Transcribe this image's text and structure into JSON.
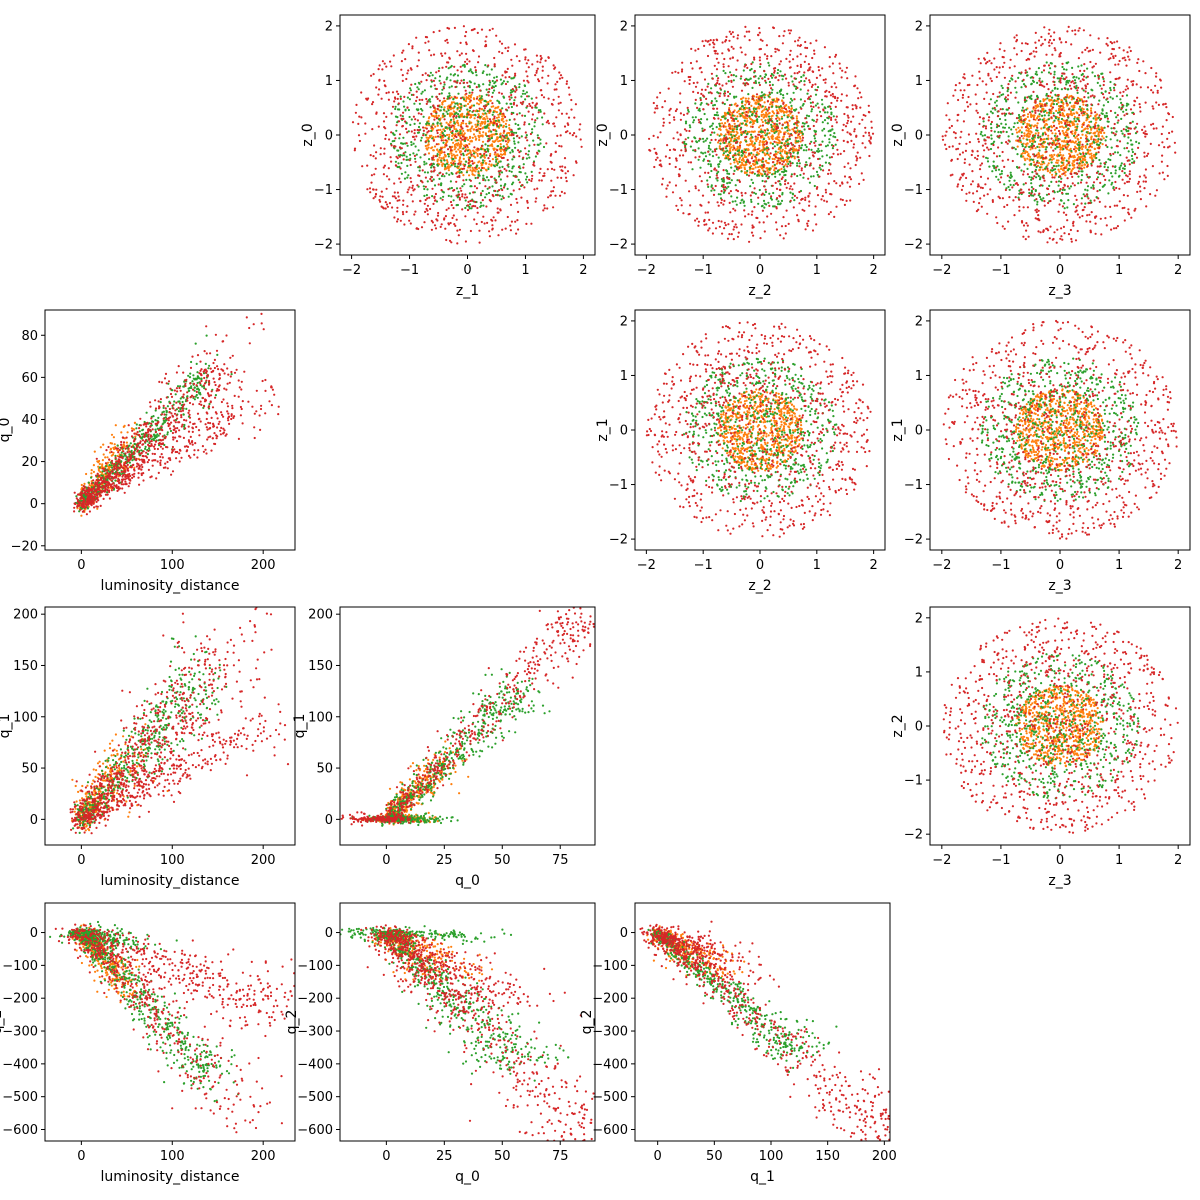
{
  "figure": {
    "background": "#ffffff",
    "series_colors": {
      "blue": "#1f77b4",
      "orange": "#ff7f0e",
      "green": "#2ca02c",
      "red": "#d62728"
    }
  },
  "chart_data": [
    {
      "type": "scatter",
      "xlabel": "z_1",
      "ylabel": "z_0",
      "xlim": [
        -2.2,
        2.2
      ],
      "ylim": [
        -2.2,
        2.2
      ],
      "xticks": [
        -2,
        -1,
        0,
        1,
        2
      ],
      "yticks": [
        -2,
        -1,
        0,
        1,
        2
      ],
      "series": [
        {
          "color": "#ff7f0e",
          "distribution": "disc",
          "center": [
            0,
            0
          ],
          "radius": 0.75,
          "n_points": 700
        },
        {
          "color": "#2ca02c",
          "distribution": "disc",
          "center": [
            0,
            0
          ],
          "radius": 1.35,
          "n_points": 650
        },
        {
          "color": "#d62728",
          "distribution": "disc",
          "center": [
            0,
            0
          ],
          "radius": 2.0,
          "n_points": 900
        }
      ]
    },
    {
      "type": "scatter",
      "xlabel": "z_2",
      "ylabel": "z_0",
      "xlim": [
        -2.2,
        2.2
      ],
      "ylim": [
        -2.2,
        2.2
      ],
      "xticks": [
        -2,
        -1,
        0,
        1,
        2
      ],
      "yticks": [
        -2,
        -1,
        0,
        1,
        2
      ],
      "series": [
        {
          "color": "#ff7f0e",
          "distribution": "disc",
          "center": [
            0,
            0
          ],
          "radius": 0.75,
          "n_points": 700
        },
        {
          "color": "#2ca02c",
          "distribution": "disc",
          "center": [
            0,
            0
          ],
          "radius": 1.35,
          "n_points": 650
        },
        {
          "color": "#d62728",
          "distribution": "disc",
          "center": [
            0,
            0
          ],
          "radius": 2.0,
          "n_points": 900
        }
      ]
    },
    {
      "type": "scatter",
      "xlabel": "z_3",
      "ylabel": "z_0",
      "xlim": [
        -2.2,
        2.2
      ],
      "ylim": [
        -2.2,
        2.2
      ],
      "xticks": [
        -2,
        -1,
        0,
        1,
        2
      ],
      "yticks": [
        -2,
        -1,
        0,
        1,
        2
      ],
      "series": [
        {
          "color": "#ff7f0e",
          "distribution": "disc",
          "center": [
            0,
            0
          ],
          "radius": 0.75,
          "n_points": 700
        },
        {
          "color": "#2ca02c",
          "distribution": "disc",
          "center": [
            0,
            0
          ],
          "radius": 1.35,
          "n_points": 650
        },
        {
          "color": "#d62728",
          "distribution": "disc",
          "center": [
            0,
            0
          ],
          "radius": 2.0,
          "n_points": 900
        }
      ]
    },
    {
      "type": "scatter",
      "xlabel": "luminosity_distance",
      "ylabel": "q_0",
      "xlim": [
        -40,
        235
      ],
      "ylim": [
        -22,
        92
      ],
      "xticks": [
        0,
        100,
        200
      ],
      "yticks": [
        -20,
        0,
        20,
        40,
        60,
        80
      ],
      "series": [
        {
          "color": "#ff7f0e",
          "distribution": "branches",
          "origin": [
            0,
            0
          ],
          "spread": 4,
          "branches": [
            [
              60,
              35,
              0.6,
              1
            ]
          ]
        },
        {
          "color": "#2ca02c",
          "distribution": "branches",
          "origin": [
            0,
            0
          ],
          "spread": 4,
          "branches": [
            [
              130,
              58,
              1,
              1
            ]
          ]
        },
        {
          "color": "#d62728",
          "distribution": "branches",
          "origin": [
            0,
            0
          ],
          "spread": 6,
          "branches": [
            [
              215,
              52,
              0.7,
              1
            ],
            [
              150,
              62,
              1,
              1
            ],
            [
              200,
              86,
              0.25,
              1
            ]
          ]
        }
      ]
    },
    {
      "type": "scatter",
      "xlabel": "z_2",
      "ylabel": "z_1",
      "xlim": [
        -2.2,
        2.2
      ],
      "ylim": [
        -2.2,
        2.2
      ],
      "xticks": [
        -2,
        -1,
        0,
        1,
        2
      ],
      "yticks": [
        -2,
        -1,
        0,
        1,
        2
      ],
      "series": [
        {
          "color": "#ff7f0e",
          "distribution": "disc",
          "center": [
            0,
            0
          ],
          "radius": 0.75,
          "n_points": 700
        },
        {
          "color": "#2ca02c",
          "distribution": "disc",
          "center": [
            0,
            0
          ],
          "radius": 1.35,
          "n_points": 650
        },
        {
          "color": "#d62728",
          "distribution": "disc",
          "center": [
            0,
            0
          ],
          "radius": 2.0,
          "n_points": 900
        }
      ]
    },
    {
      "type": "scatter",
      "xlabel": "z_3",
      "ylabel": "z_1",
      "xlim": [
        -2.2,
        2.2
      ],
      "ylim": [
        -2.2,
        2.2
      ],
      "xticks": [
        -2,
        -1,
        0,
        1,
        2
      ],
      "yticks": [
        -2,
        -1,
        0,
        1,
        2
      ],
      "series": [
        {
          "color": "#ff7f0e",
          "distribution": "disc",
          "center": [
            0,
            0
          ],
          "radius": 0.75,
          "n_points": 700
        },
        {
          "color": "#2ca02c",
          "distribution": "disc",
          "center": [
            0,
            0
          ],
          "radius": 1.35,
          "n_points": 650
        },
        {
          "color": "#d62728",
          "distribution": "disc",
          "center": [
            0,
            0
          ],
          "radius": 2.0,
          "n_points": 900
        }
      ]
    },
    {
      "type": "scatter",
      "xlabel": "luminosity_distance",
      "ylabel": "q_1",
      "xlim": [
        -40,
        235
      ],
      "ylim": [
        -25,
        207
      ],
      "xticks": [
        0,
        100,
        200
      ],
      "yticks": [
        0,
        50,
        100,
        150,
        200
      ],
      "series": [
        {
          "color": "#ff7f0e",
          "distribution": "branches",
          "origin": [
            0,
            0
          ],
          "spread": 7,
          "branches": [
            [
              60,
              70,
              0.6,
              1
            ]
          ]
        },
        {
          "color": "#2ca02c",
          "distribution": "branches",
          "origin": [
            0,
            0
          ],
          "spread": 7,
          "branches": [
            [
              130,
              130,
              1,
              1
            ]
          ]
        },
        {
          "color": "#d62728",
          "distribution": "branches",
          "origin": [
            0,
            0
          ],
          "spread": 10,
          "branches": [
            [
              215,
              95,
              0.7,
              1
            ],
            [
              150,
              150,
              1,
              1
            ],
            [
              200,
              195,
              0.25,
              1
            ]
          ]
        }
      ]
    },
    {
      "type": "scatter",
      "xlabel": "q_0",
      "ylabel": "q_1",
      "xlim": [
        -20,
        90
      ],
      "ylim": [
        -25,
        207
      ],
      "xticks": [
        0,
        25,
        50,
        75
      ],
      "yticks": [
        0,
        50,
        100,
        150,
        200
      ],
      "series": [
        {
          "color": "#ff7f0e",
          "distribution": "branches",
          "origin": [
            0,
            0
          ],
          "spread": 4,
          "branches": [
            [
              30,
              65,
              0.6,
              1
            ],
            [
              15,
              0,
              0.4,
              1
            ]
          ]
        },
        {
          "color": "#2ca02c",
          "distribution": "branches",
          "origin": [
            0,
            0
          ],
          "spread": 4,
          "branches": [
            [
              55,
              120,
              1,
              1
            ],
            [
              15,
              0,
              0.6,
              1
            ]
          ]
        },
        {
          "color": "#d62728",
          "distribution": "branches",
          "origin": [
            0,
            0
          ],
          "spread": 5,
          "branches": [
            [
              85,
              195,
              1,
              1
            ],
            [
              -10,
              0,
              0.3,
              1
            ]
          ]
        }
      ]
    },
    {
      "type": "scatter",
      "xlabel": "z_3",
      "ylabel": "z_2",
      "xlim": [
        -2.2,
        2.2
      ],
      "ylim": [
        -2.2,
        2.2
      ],
      "xticks": [
        -2,
        -1,
        0,
        1,
        2
      ],
      "yticks": [
        -2,
        -1,
        0,
        1,
        2
      ],
      "series": [
        {
          "color": "#ff7f0e",
          "distribution": "disc",
          "center": [
            0,
            0
          ],
          "radius": 0.75,
          "n_points": 700
        },
        {
          "color": "#2ca02c",
          "distribution": "disc",
          "center": [
            0,
            0
          ],
          "radius": 1.35,
          "n_points": 650
        },
        {
          "color": "#d62728",
          "distribution": "disc",
          "center": [
            0,
            0
          ],
          "radius": 2.0,
          "n_points": 900
        }
      ]
    },
    {
      "type": "scatter",
      "xlabel": "luminosity_distance",
      "ylabel": "q_2",
      "xlim": [
        -40,
        235
      ],
      "ylim": [
        -635,
        90
      ],
      "xticks": [
        0,
        100,
        200
      ],
      "yticks": [
        0,
        -100,
        -200,
        -300,
        -400,
        -500,
        -600
      ],
      "series": [
        {
          "color": "#ff7f0e",
          "distribution": "branches",
          "origin": [
            0,
            0
          ],
          "spread": 12,
          "branches": [
            [
              60,
              -200,
              0.6,
              1
            ]
          ]
        },
        {
          "color": "#2ca02c",
          "distribution": "branches",
          "origin": [
            0,
            0
          ],
          "spread": 12,
          "branches": [
            [
              140,
              -420,
              1,
              1
            ],
            [
              60,
              -40,
              0.5,
              1
            ]
          ]
        },
        {
          "color": "#d62728",
          "distribution": "branches",
          "origin": [
            0,
            0
          ],
          "spread": 18,
          "branches": [
            [
              220,
              -225,
              1,
              1
            ],
            [
              200,
              -600,
              0.7,
              1
            ]
          ]
        }
      ]
    },
    {
      "type": "scatter",
      "xlabel": "q_0",
      "ylabel": "q_2",
      "xlim": [
        -20,
        90
      ],
      "ylim": [
        -635,
        90
      ],
      "xticks": [
        0,
        25,
        50,
        75
      ],
      "yticks": [
        0,
        -100,
        -200,
        -300,
        -400,
        -500,
        -600
      ],
      "series": [
        {
          "color": "#ff7f0e",
          "distribution": "branches",
          "origin": [
            0,
            0
          ],
          "spread": 10,
          "branches": [
            [
              30,
              -130,
              0.6,
              1
            ]
          ]
        },
        {
          "color": "#2ca02c",
          "distribution": "branches",
          "origin": [
            0,
            0
          ],
          "spread": 10,
          "branches": [
            [
              55,
              -380,
              1,
              1
            ],
            [
              35,
              -20,
              0.4,
              1
            ]
          ]
        },
        {
          "color": "#d62728",
          "distribution": "branches",
          "origin": [
            0,
            0
          ],
          "spread": 14,
          "branches": [
            [
              85,
              -590,
              1,
              1
            ],
            [
              50,
              -220,
              0.8,
              1
            ]
          ]
        }
      ]
    },
    {
      "type": "scatter",
      "xlabel": "q_1",
      "ylabel": "q_2",
      "xlim": [
        -20,
        205
      ],
      "ylim": [
        -635,
        90
      ],
      "xticks": [
        0,
        50,
        100,
        150,
        200
      ],
      "yticks": [
        0,
        -100,
        -200,
        -300,
        -400,
        -500,
        -600
      ],
      "series": [
        {
          "color": "#ff7f0e",
          "distribution": "branches",
          "origin": [
            0,
            0
          ],
          "spread": 10,
          "branches": [
            [
              60,
              -130,
              0.6,
              1
            ]
          ]
        },
        {
          "color": "#2ca02c",
          "distribution": "branches",
          "origin": [
            0,
            0
          ],
          "spread": 10,
          "branches": [
            [
              120,
              -350,
              1,
              1
            ]
          ]
        },
        {
          "color": "#d62728",
          "distribution": "branches",
          "origin": [
            0,
            0
          ],
          "spread": 14,
          "branches": [
            [
              195,
              -590,
              1,
              1
            ],
            [
              80,
              -140,
              0.6,
              1
            ]
          ]
        }
      ]
    }
  ]
}
